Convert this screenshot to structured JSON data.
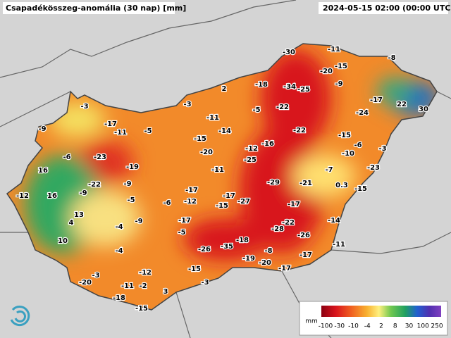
{
  "header": {
    "title": "Csapadékösszeg-anomália (30 nap) [mm]",
    "timestamp": "2024-05-15 02:00 (00:00 UTC)"
  },
  "stations": [
    -30,
    -11,
    -8,
    -20,
    -15,
    2,
    -18,
    -34,
    -25,
    -9,
    -17,
    22,
    30,
    -3,
    -3,
    -22,
    -5,
    -24,
    -9,
    -17,
    -11,
    -5,
    -11,
    -14,
    -22,
    -15,
    -15,
    -20,
    -16,
    -12,
    -6,
    -3,
    -6,
    -23,
    -10,
    -25,
    16,
    -19,
    -11,
    -7,
    -23,
    -22,
    -9,
    -29,
    -21,
    0.3,
    -15,
    -12,
    16,
    -9,
    -17,
    -17,
    -27,
    -5,
    -12,
    -6,
    -15,
    -17,
    13,
    -17,
    4,
    -4,
    -9,
    -22,
    -28,
    -26,
    -14,
    -5,
    10,
    -18,
    -35,
    -26,
    -8,
    -11,
    -4,
    -19,
    -20,
    -17,
    -15,
    -17,
    -3,
    -12,
    -20,
    -11,
    -2,
    -3,
    3,
    -18,
    -15
  ],
  "legend": {
    "unit": "mm",
    "ticks": [
      -100,
      -30,
      -10,
      -4,
      2,
      8,
      30,
      100,
      250
    ]
  }
}
